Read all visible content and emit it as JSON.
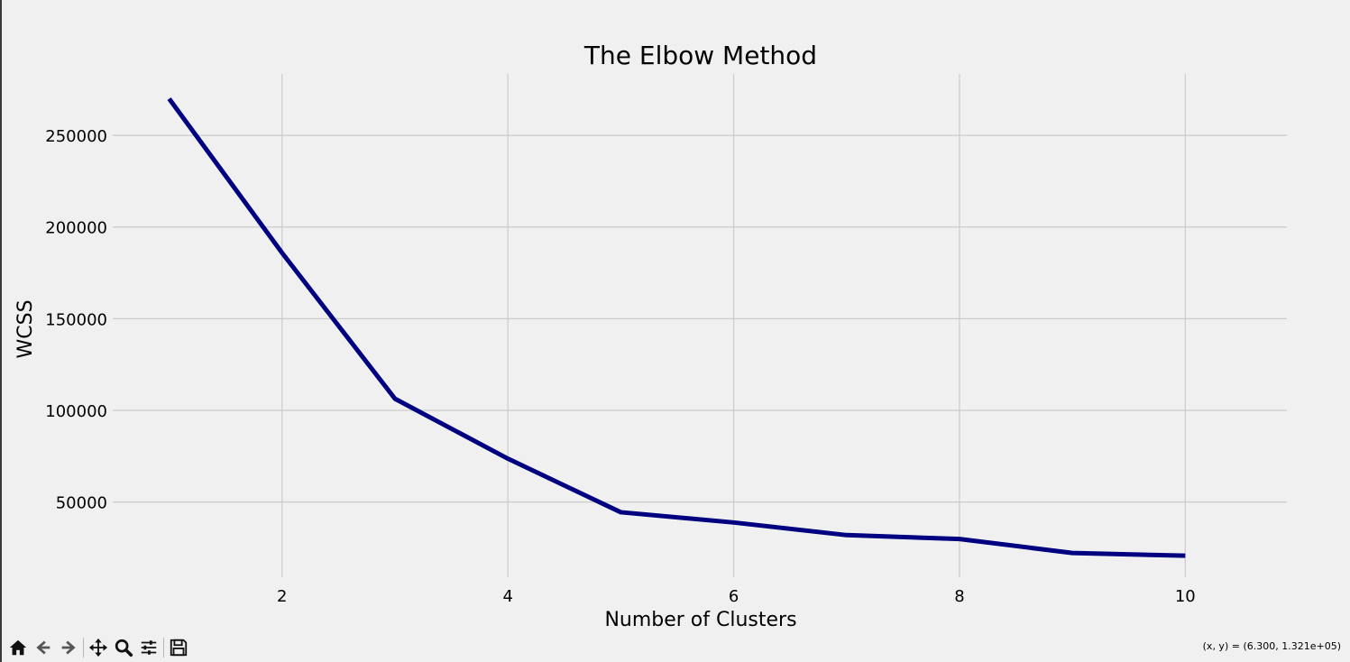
{
  "chart_data": {
    "type": "line",
    "title": "The Elbow Method",
    "xlabel": "Number of Clusters",
    "ylabel": "WCSS",
    "x": [
      1,
      2,
      3,
      4,
      5,
      6,
      7,
      8,
      9,
      10
    ],
    "series": [
      {
        "values": [
          269981,
          185917,
          106348,
          73679,
          44448,
          38858,
          31969,
          29858,
          22209,
          20737
        ],
        "color": "#000080"
      }
    ],
    "xticks": [
      2,
      4,
      6,
      8,
      10
    ],
    "xtick_labels": [
      "2",
      "4",
      "6",
      "8",
      "10"
    ],
    "yticks": [
      50000,
      100000,
      150000,
      200000,
      250000
    ],
    "ytick_labels": [
      "50000",
      "100000",
      "150000",
      "200000",
      "250000"
    ],
    "xlim": [
      0.5,
      10.9
    ],
    "ylim": [
      9000,
      283500
    ],
    "grid": true
  },
  "toolbar": {
    "buttons": [
      "home-icon",
      "back-arrow-icon",
      "forward-arrow-icon",
      "move-icon",
      "zoom-icon",
      "configure-subplots-icon",
      "save-icon"
    ]
  },
  "status": {
    "coords": "(x, y) = (6.300, 1.321e+05)"
  }
}
